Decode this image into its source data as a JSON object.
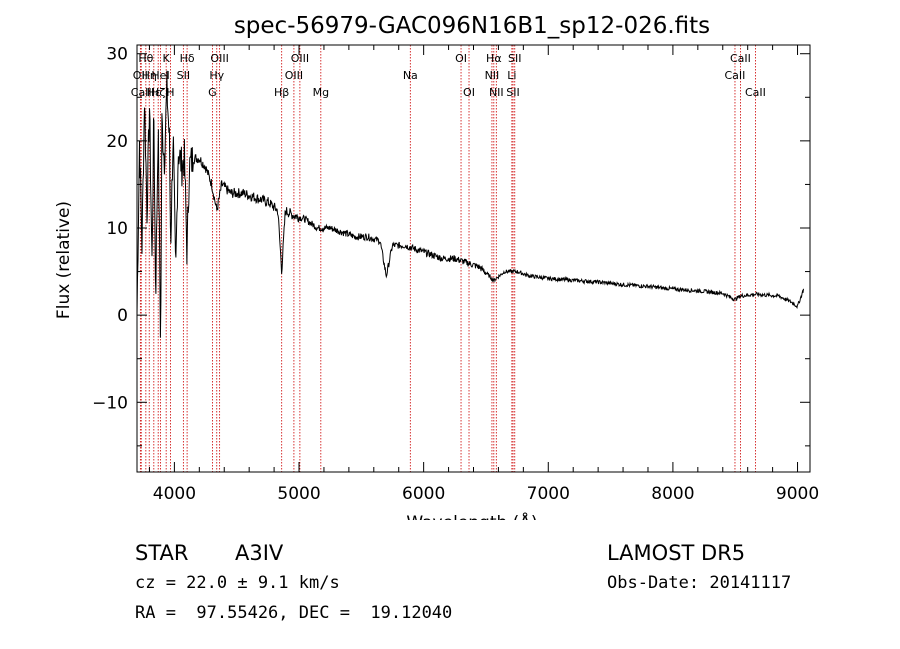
{
  "chart_data": {
    "type": "line",
    "title": "spec-56979-GAC096N16B1_sp12-026.fits",
    "xlabel": "Wavelength (Å)",
    "ylabel": "Flux (relative)",
    "xlim": [
      3700,
      9100
    ],
    "ylim": [
      -18,
      31
    ],
    "xticks": [
      4000,
      5000,
      6000,
      7000,
      8000,
      9000
    ],
    "yticks": [
      -10,
      0,
      10,
      20,
      30
    ],
    "grid": false,
    "line_color": "#000000",
    "marker_color": "#cc0000",
    "series": [
      {
        "x": [
          3700,
          3720,
          3740,
          3760,
          3780,
          3800,
          3820,
          3835,
          3850,
          3870,
          3890,
          3900,
          3920,
          3940,
          3960,
          3970,
          3990,
          4010,
          4030,
          4060,
          4080,
          4101,
          4120,
          4150,
          4200,
          4250,
          4300,
          4340,
          4380,
          4450,
          4550,
          4650,
          4750,
          4830,
          4861,
          4890,
          4950,
          5050,
          5150,
          5250,
          5350,
          5450,
          5550,
          5650,
          5700,
          5750,
          5850,
          5950,
          6050,
          6150,
          6250,
          6350,
          6450,
          6563,
          6650,
          6750,
          6850,
          7000,
          7200,
          7400,
          7600,
          7800,
          8000,
          8200,
          8400,
          8498,
          8542,
          8662,
          8750,
          8850,
          8950,
          9000,
          9050
        ],
        "y": [
          0,
          20,
          8,
          25,
          12,
          24,
          6,
          24,
          2,
          22,
          -4,
          22,
          18,
          26,
          20,
          8,
          21,
          4,
          19,
          17,
          18,
          7,
          17,
          18,
          18,
          17,
          15,
          12,
          15,
          14,
          14,
          13.5,
          13,
          12,
          5,
          12,
          11.5,
          11,
          10,
          10,
          9.5,
          9,
          9,
          8.5,
          4.5,
          8,
          8,
          7.5,
          7,
          6.5,
          6.5,
          6,
          5.5,
          4,
          5,
          5,
          4.5,
          4.2,
          4,
          3.8,
          3.5,
          3.3,
          3,
          2.8,
          2.5,
          1.8,
          2.2,
          2.4,
          2.3,
          2.2,
          1.5,
          1,
          3
        ]
      }
    ],
    "lines": [
      {
        "name": "Hθ",
        "x": 3771,
        "row": 1
      },
      {
        "name": "OII",
        "x": 3727,
        "row": 2
      },
      {
        "name": "Hη",
        "x": 3798,
        "row": 2
      },
      {
        "name": "CaII",
        "x": 3734,
        "row": 3
      },
      {
        "name": "Hε",
        "x": 3835,
        "row": 3
      },
      {
        "name": "HeI",
        "x": 3889,
        "row": 2
      },
      {
        "name": "Hζ",
        "x": 3870,
        "row": 3
      },
      {
        "name": "K",
        "x": 3934,
        "row": 1
      },
      {
        "name": "H",
        "x": 3968,
        "row": 3
      },
      {
        "name": "SII",
        "x": 4072,
        "row": 2
      },
      {
        "name": "Hδ",
        "x": 4102,
        "row": 1
      },
      {
        "name": "OIII",
        "x": 4363,
        "row": 1
      },
      {
        "name": "Hγ",
        "x": 4340,
        "row": 2
      },
      {
        "name": "G",
        "x": 4305,
        "row": 3
      },
      {
        "name": "Hβ",
        "x": 4861,
        "row": 3
      },
      {
        "name": "OIII",
        "x": 5007,
        "row": 1
      },
      {
        "name": "OIII",
        "x": 4959,
        "row": 2
      },
      {
        "name": "Mg",
        "x": 5175,
        "row": 3
      },
      {
        "name": "Na",
        "x": 5893,
        "row": 2
      },
      {
        "name": "OI",
        "x": 6300,
        "row": 1
      },
      {
        "name": "OI",
        "x": 6364,
        "row": 3
      },
      {
        "name": "Hα",
        "x": 6563,
        "row": 1
      },
      {
        "name": "NII",
        "x": 6548,
        "row": 2
      },
      {
        "name": "NII",
        "x": 6583,
        "row": 3
      },
      {
        "name": "SII",
        "x": 6731,
        "row": 1
      },
      {
        "name": "Li",
        "x": 6708,
        "row": 2
      },
      {
        "name": "SII",
        "x": 6717,
        "row": 3
      },
      {
        "name": "CaII",
        "x": 8542,
        "row": 1
      },
      {
        "name": "CaII",
        "x": 8498,
        "row": 2
      },
      {
        "name": "CaII",
        "x": 8662,
        "row": 3
      }
    ]
  },
  "info": {
    "object_class": "STAR",
    "subclass": "A3IV",
    "survey": "LAMOST DR5",
    "cz": "cz = 22.0 ± 9.1 km/s",
    "obs_date": "Obs-Date: 20141117",
    "coords": "RA =  97.55426, DEC =  19.12040"
  }
}
